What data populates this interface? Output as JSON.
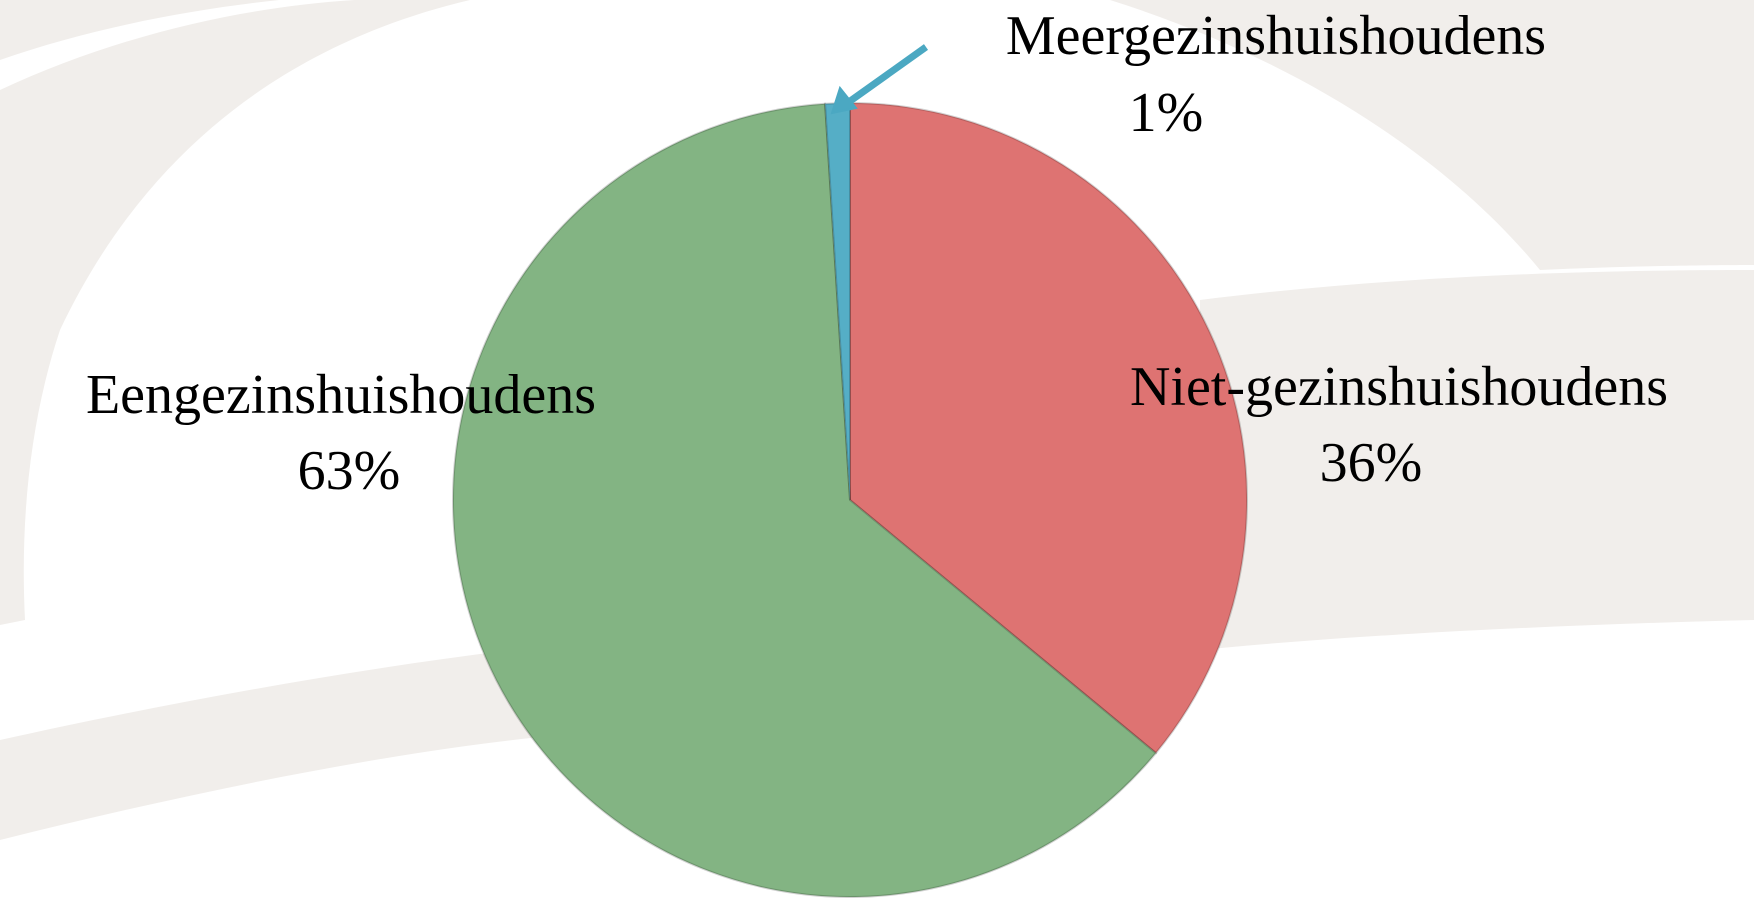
{
  "chart_data": {
    "type": "pie",
    "categories": [
      "Niet-gezinshuishoudens",
      "Eengezinshuishoudens",
      "Meergezinshuishoudens"
    ],
    "values": [
      36,
      63,
      1
    ],
    "value_labels": [
      "36%",
      "63%",
      "1%"
    ],
    "colors": [
      "#de7372",
      "#83b483",
      "#55aec6"
    ]
  }
}
